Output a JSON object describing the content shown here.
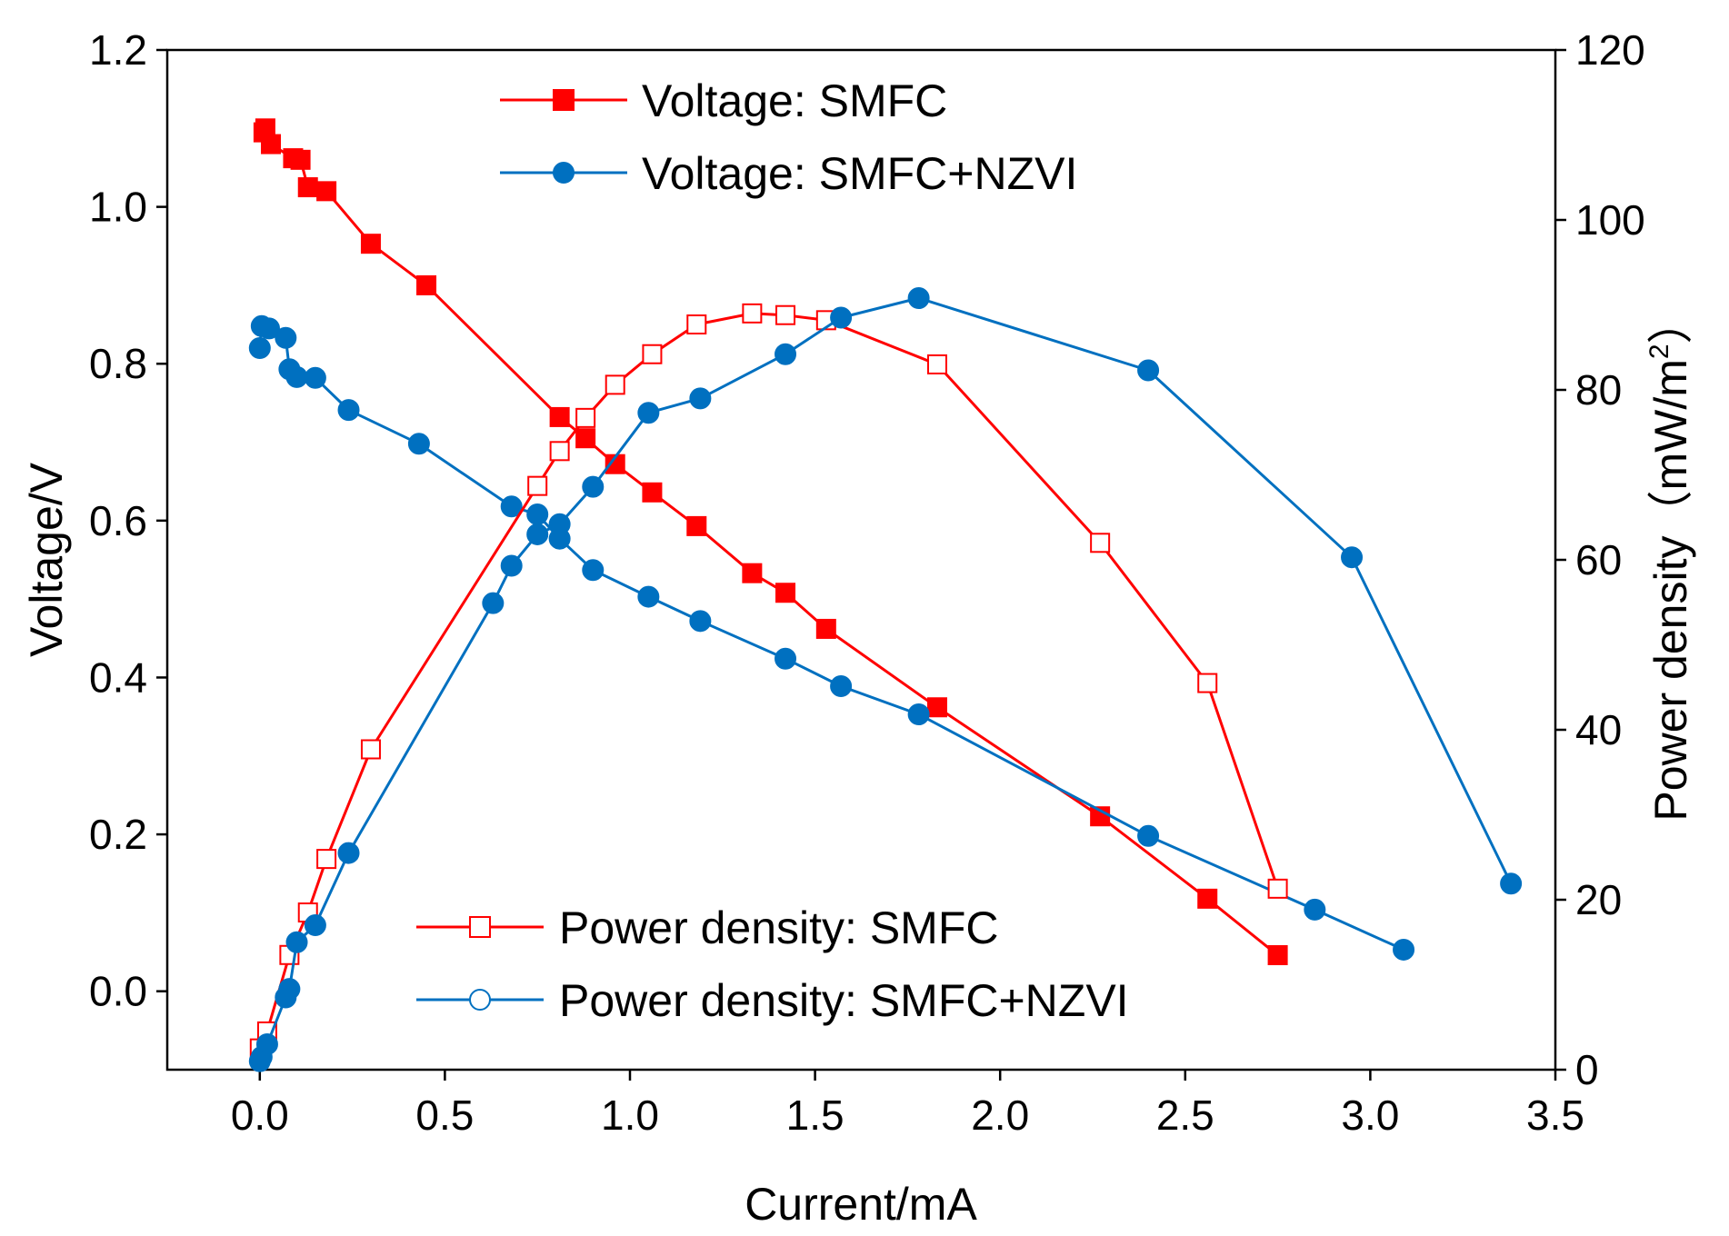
{
  "chart_data": {
    "type": "line",
    "xlabel": "Current/mA",
    "ylabel": "Voltage/V",
    "ylabel_right_main": "Power density（mW/m",
    "ylabel_right_sup": "2",
    "ylabel_right_close": "）",
    "xlim": [
      -0.25,
      3.5
    ],
    "ylim": [
      -0.1,
      1.2
    ],
    "y2lim": [
      0,
      120
    ],
    "x_ticks": [
      "0.0",
      "0.5",
      "1.0",
      "1.5",
      "2.0",
      "2.5",
      "3.0",
      "3.5"
    ],
    "x_tick_values": [
      0,
      0.5,
      1,
      1.5,
      2,
      2.5,
      3,
      3.5
    ],
    "y_ticks": [
      "0.0",
      "0.2",
      "0.4",
      "0.6",
      "0.8",
      "1.0",
      "1.2"
    ],
    "y_tick_values": [
      0,
      0.2,
      0.4,
      0.6,
      0.8,
      1.0,
      1.2
    ],
    "y2_ticks": [
      "0",
      "20",
      "40",
      "60",
      "80",
      "100",
      "120"
    ],
    "y2_tick_values": [
      0,
      20,
      40,
      60,
      80,
      100,
      120
    ],
    "colors": {
      "red": "#ff0000",
      "blue": "#0070c0"
    },
    "legend_top": [
      "Voltage: SMFC",
      "Voltage: SMFC+NZVI"
    ],
    "legend_bottom": [
      "Power density: SMFC",
      "Power density: SMFC+NZVI"
    ],
    "series": [
      {
        "name": "Voltage: SMFC",
        "axis": "left",
        "color": "red",
        "marker": "square",
        "filled": true,
        "x": [
          0.01,
          0.015,
          0.03,
          0.09,
          0.11,
          0.13,
          0.18,
          0.3,
          0.45,
          0.81,
          0.88,
          0.96,
          1.06,
          1.18,
          1.33,
          1.42,
          1.53,
          1.83,
          2.27,
          2.56,
          2.75
        ],
        "y": [
          1.095,
          1.1,
          1.08,
          1.062,
          1.06,
          1.025,
          1.02,
          0.953,
          0.9,
          0.732,
          0.705,
          0.672,
          0.636,
          0.593,
          0.533,
          0.508,
          0.462,
          0.362,
          0.223,
          0.118,
          0.046
        ]
      },
      {
        "name": "Voltage: SMFC+NZVI",
        "axis": "left",
        "color": "blue",
        "marker": "circle",
        "filled": true,
        "x": [
          0.0,
          0.005,
          0.025,
          0.07,
          0.08,
          0.1,
          0.15,
          0.24,
          0.43,
          0.68,
          0.75,
          0.81,
          0.9,
          1.05,
          1.19,
          1.42,
          1.57,
          1.78,
          2.4,
          2.85,
          3.09
        ],
        "y": [
          0.82,
          0.848,
          0.845,
          0.833,
          0.793,
          0.783,
          0.782,
          0.741,
          0.698,
          0.618,
          0.608,
          0.577,
          0.537,
          0.503,
          0.472,
          0.424,
          0.389,
          0.353,
          0.198,
          0.104,
          0.053
        ]
      },
      {
        "name": "Power density: SMFC",
        "axis": "right",
        "color": "red",
        "marker": "square",
        "filled": false,
        "x": [
          0.0,
          0.02,
          0.08,
          0.13,
          0.18,
          0.3,
          0.75,
          0.81,
          0.88,
          0.96,
          1.06,
          1.18,
          1.33,
          1.42,
          1.53,
          1.83,
          2.27,
          2.56,
          2.75
        ],
        "y": [
          2.5,
          4.5,
          13.5,
          18.5,
          24.8,
          37.7,
          68.7,
          72.8,
          76.7,
          80.6,
          84.2,
          87.7,
          89.0,
          88.8,
          88.2,
          83.0,
          62.0,
          45.5,
          21.3
        ]
      },
      {
        "name": "Power density: SMFC+NZVI",
        "axis": "right",
        "color": "blue",
        "marker": "circle",
        "filled": true,
        "x": [
          0.0,
          0.005,
          0.02,
          0.07,
          0.08,
          0.1,
          0.15,
          0.24,
          0.63,
          0.68,
          0.75,
          0.81,
          0.9,
          1.05,
          1.19,
          1.42,
          1.57,
          1.78,
          2.4,
          2.95,
          3.38
        ],
        "y": [
          1.0,
          1.5,
          3.0,
          8.5,
          9.5,
          15.0,
          17.0,
          25.5,
          54.9,
          59.3,
          63.0,
          64.2,
          68.6,
          77.3,
          79.0,
          84.2,
          88.5,
          90.8,
          82.3,
          60.3,
          21.9
        ]
      }
    ]
  }
}
